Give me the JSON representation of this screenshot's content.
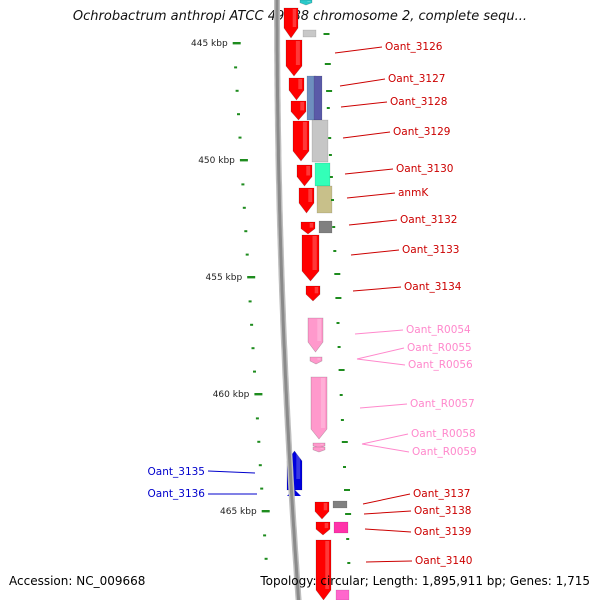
{
  "title": "Ochrobactrum anthropi ATCC 49188 chromosome 2, complete sequ...",
  "footer": {
    "accession": "Accession: NC_009668",
    "stats": "Topology: circular; Length: 1,895,911 bp; Genes: 1,715"
  },
  "colors": {
    "backbone": "#8a8a8a",
    "tick": "#1e8c1e",
    "cds": "#ff0000",
    "rna": "#ff99cc",
    "rna_label": "#ff88cc",
    "minus_strand": "#0000dd",
    "label_red": "#cc0000",
    "label_blue": "#0000cc"
  },
  "scale": {
    "ticks": [
      {
        "label": "445 kbp"
      },
      {
        "label": "450 kbp"
      },
      {
        "label": "455 kbp"
      },
      {
        "label": "460 kbp"
      },
      {
        "label": "465 kbp"
      }
    ]
  },
  "genes": [
    {
      "label": "Oant_3126",
      "type": "cds"
    },
    {
      "label": "Oant_3127",
      "type": "cds"
    },
    {
      "label": "Oant_3128",
      "type": "cds"
    },
    {
      "label": "Oant_3129",
      "type": "cds"
    },
    {
      "label": "Oant_3130",
      "type": "cds"
    },
    {
      "label": "anmK",
      "type": "cds"
    },
    {
      "label": "Oant_3132",
      "type": "cds"
    },
    {
      "label": "Oant_3133",
      "type": "cds"
    },
    {
      "label": "Oant_3134",
      "type": "cds"
    },
    {
      "label": "Oant_R0054",
      "type": "rna"
    },
    {
      "label": "Oant_R0055",
      "type": "rna"
    },
    {
      "label": "Oant_R0056",
      "type": "rna"
    },
    {
      "label": "Oant_R0057",
      "type": "rna"
    },
    {
      "label": "Oant_R0058",
      "type": "rna"
    },
    {
      "label": "Oant_R0059",
      "type": "rna"
    },
    {
      "label": "Oant_3135",
      "type": "cds",
      "strand": "minus"
    },
    {
      "label": "Oant_3136",
      "type": "cds",
      "strand": "minus"
    },
    {
      "label": "Oant_3137",
      "type": "cds"
    },
    {
      "label": "Oant_3138",
      "type": "cds"
    },
    {
      "label": "Oant_3139",
      "type": "cds"
    },
    {
      "label": "Oant_3140",
      "type": "cds"
    }
  ]
}
